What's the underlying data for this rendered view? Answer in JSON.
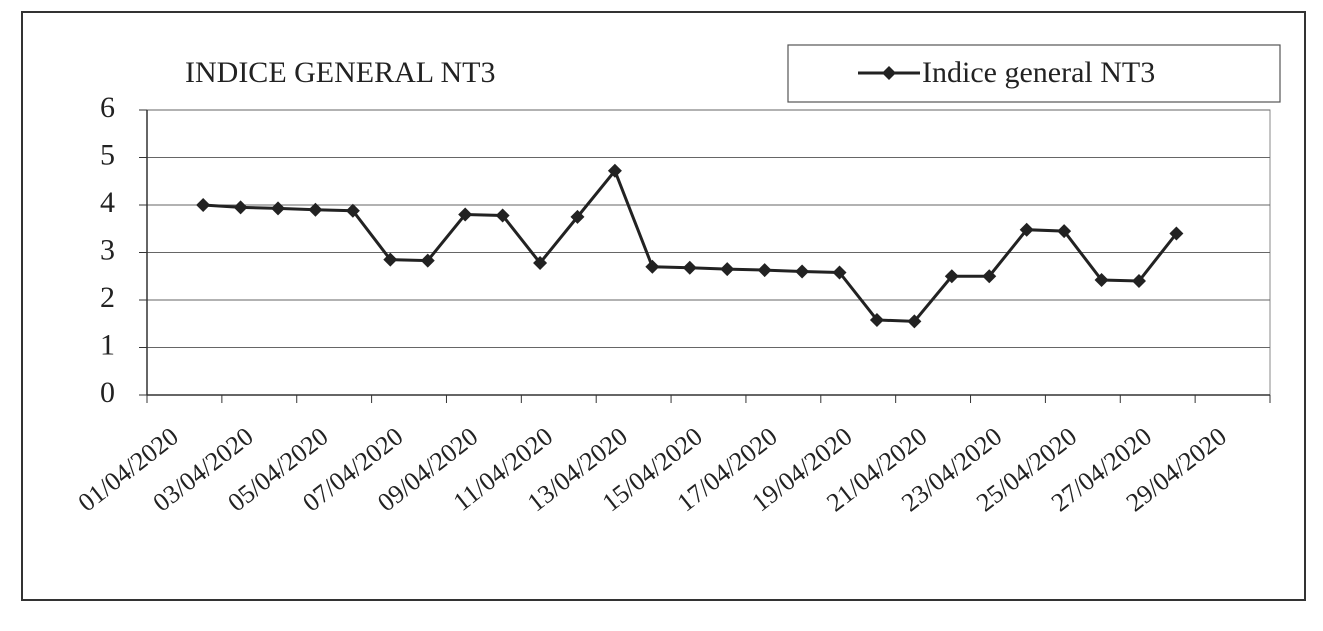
{
  "chart_data": {
    "type": "line",
    "title": "INDICE GENERAL NT3",
    "categories": [
      "01/04/2020",
      null,
      "03/04/2020",
      null,
      "05/04/2020",
      null,
      "07/04/2020",
      null,
      "09/04/2020",
      null,
      "11/04/2020",
      null,
      "13/04/2020",
      null,
      "15/04/2020",
      null,
      "17/04/2020",
      null,
      "19/04/2020",
      null,
      "21/04/2020",
      null,
      "23/04/2020",
      null,
      "25/04/2020",
      null,
      "27/04/2020",
      null,
      "29/04/2020",
      null
    ],
    "series": [
      {
        "name": "Indice general NT3",
        "color": "#222222",
        "values": [
          null,
          4.0,
          3.95,
          3.93,
          3.9,
          3.88,
          2.85,
          2.83,
          3.8,
          3.78,
          2.78,
          3.75,
          4.72,
          2.7,
          2.68,
          2.65,
          2.63,
          2.6,
          2.58,
          1.58,
          1.55,
          2.5,
          2.5,
          3.48,
          3.45,
          2.42,
          2.4,
          3.4,
          null,
          null
        ]
      }
    ],
    "ylim": [
      0,
      6
    ],
    "yticks": [
      0,
      1,
      2,
      3,
      4,
      5,
      6
    ],
    "grid": true,
    "legend": "top-right"
  }
}
